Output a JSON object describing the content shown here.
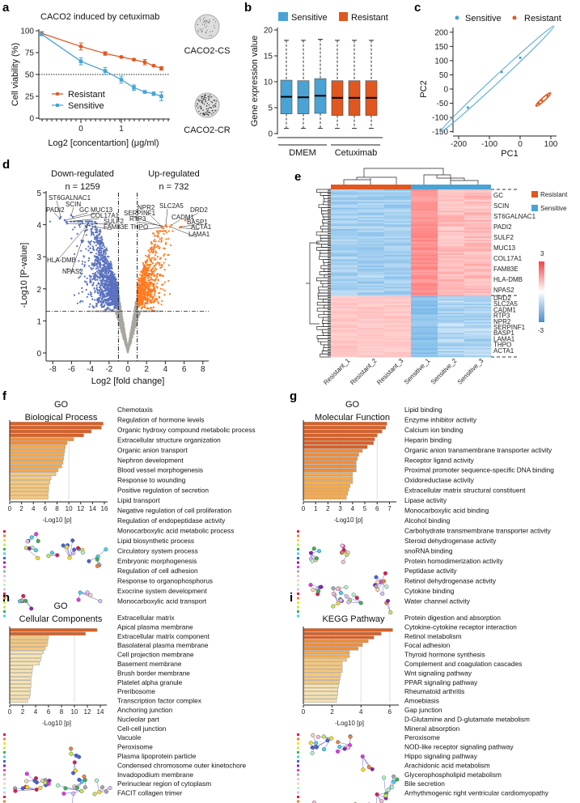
{
  "panels": {
    "a": "a",
    "b": "b",
    "c": "c",
    "d": "d",
    "e": "e",
    "f": "f",
    "g": "g",
    "h": "h",
    "i": "i"
  },
  "colors": {
    "resistant": "#e0571f",
    "sensitive": "#4aa3d4",
    "down": "#5b72c0",
    "up": "#ff7a1f",
    "gray": "#a9a6a0"
  },
  "chart_data": [
    {
      "id": "a",
      "type": "line",
      "title": "CACO2 induced by cetuximab",
      "xlabel": "Log2 [concentartion] (μg/ml)",
      "ylabel": "Cell viability (%)",
      "ylim": [
        0,
        100
      ],
      "yticks": [
        "0",
        "25",
        "50",
        "75",
        "100"
      ],
      "xticks": [
        "0",
        "1"
      ],
      "reference_line": 50,
      "x": [
        -0.97,
        0,
        0.6,
        1,
        1.31,
        1.58,
        1.8,
        1.99
      ],
      "series": [
        {
          "name": "Resistant",
          "values": [
            97,
            82,
            74,
            70,
            67,
            64,
            60,
            57
          ],
          "err": [
            2,
            4,
            2,
            1,
            1,
            3,
            1,
            2
          ]
        },
        {
          "name": "Sensitive",
          "values": [
            96,
            65,
            54,
            44,
            35,
            30,
            28,
            25
          ],
          "err": [
            1,
            4,
            4,
            4,
            3,
            1,
            2,
            5
          ]
        }
      ],
      "images": [
        "CACO2-CS",
        "CACO2-CR"
      ]
    },
    {
      "id": "b",
      "type": "box",
      "ylabel": "Gene expression value",
      "ylim": [
        0,
        20
      ],
      "yticks": [
        "0",
        "5",
        "10",
        "15",
        "20"
      ],
      "legend": [
        "Sensitive",
        "Resistant"
      ],
      "groups": [
        "DMEM",
        "Cetuximab"
      ],
      "boxes": [
        {
          "series": "Sensitive",
          "min": 1,
          "q1": 3.8,
          "median": 7.1,
          "q3": 10.3,
          "max": 18
        },
        {
          "series": "Sensitive",
          "min": 1,
          "q1": 3.8,
          "median": 7.0,
          "q3": 10.2,
          "max": 18
        },
        {
          "series": "Sensitive",
          "min": 1,
          "q1": 3.9,
          "median": 7.3,
          "q3": 10.6,
          "max": 18.2
        },
        {
          "series": "Resistant",
          "min": 1,
          "q1": 3.5,
          "median": 6.9,
          "q3": 10.2,
          "max": 18
        },
        {
          "series": "Resistant",
          "min": 1,
          "q1": 3.5,
          "median": 6.9,
          "q3": 10.2,
          "max": 18
        },
        {
          "series": "Resistant",
          "min": 1,
          "q1": 3.5,
          "median": 6.9,
          "q3": 10.2,
          "max": 18
        }
      ]
    },
    {
      "id": "c",
      "type": "scatter",
      "xlabel": "PC1",
      "ylabel": "PC2",
      "xticks": [
        "-200",
        "-100",
        "0",
        "100"
      ],
      "yticks": [
        "-150",
        "-100",
        "-50",
        "0",
        "50",
        "100",
        "150",
        "200"
      ],
      "legend": [
        "Sensitive",
        "Resistant"
      ],
      "series": [
        {
          "name": "Sensitive",
          "points": [
            [
              -170,
              -65
            ],
            [
              -60,
              60
            ],
            [
              0,
              110
            ]
          ]
        },
        {
          "name": "Resistant",
          "points": [
            [
              60,
              -50
            ],
            [
              70,
              -40
            ],
            [
              90,
              -25
            ]
          ]
        }
      ]
    },
    {
      "id": "d",
      "type": "scatter",
      "title_left": "Down-regulated",
      "title_right": "Up-regulated",
      "n_down": "n = 1259",
      "n_up": "n = 732",
      "xlabel": "Log2 [fold change]",
      "ylabel": "-Log10 [P-value]",
      "xticks": [
        "-8",
        "-6",
        "-4",
        "-2",
        "0",
        "2",
        "4",
        "6",
        "8"
      ],
      "yticks": [
        "0",
        "1",
        "2",
        "3",
        "4",
        "5"
      ],
      "thresholds": {
        "fc": 1,
        "p": 1.3
      },
      "labeled_genes": [
        "ST6GALNAC1",
        "SCIN",
        "PADI2",
        "GC",
        "MUC13",
        "COL17A1",
        "SULF2",
        "FAM83E",
        "HLA-DMB",
        "NPAS2",
        "NPR2",
        "SERPINF1",
        "RTP3",
        "THPO",
        "SLC2A5",
        "DRD2",
        "CADM1",
        "BASP1",
        "ACTA1",
        "LAMA1"
      ]
    },
    {
      "id": "e",
      "type": "heatmap",
      "columns": [
        "Resistant_1",
        "Resistant_2",
        "Resistant_3",
        "Sensitive_1",
        "Sensitive_2",
        "Sensitive_3"
      ],
      "legend": [
        "Resistant",
        "Sensitive"
      ],
      "scale": [
        "3",
        "-3"
      ],
      "genes_top": [
        "GC",
        "SCIN",
        "ST6GALNAC1",
        "PADI2",
        "SULF2",
        "MUC13",
        "COL17A1",
        "FAM83E",
        "HLA-DMB",
        "NPAS2"
      ],
      "genes_bottom": [
        "DRD2",
        "SLC2A5",
        "CADM1",
        "RTP3",
        "NPR2",
        "SERPINF1",
        "BASP1",
        "LAMA1",
        "THPO",
        "ACTA1"
      ]
    },
    {
      "id": "f",
      "type": "bar",
      "title1": "GO",
      "title2": "Biological Process",
      "xlabel": "-Log10 [p]",
      "xticks": [
        "0",
        "2",
        "4",
        "6",
        "8",
        "10",
        "12",
        "14",
        "16"
      ],
      "xmax": 16,
      "categories": [
        "Chemotaxis",
        "Regulation of hormone levels",
        "Organic hydroxy compound metabolic process",
        "Extracellular structure organization",
        "Organic anion transport",
        "Nephron development",
        "Blood vessel morphogenesis",
        "Response to wounding",
        "Positive regulation of secretion",
        "Lipid transport",
        "Negative regulation of cell proliferation",
        "Regulation of endopeptidase activity",
        "Monocarboxylic acid metabolic process",
        "Lipid biosynthetic process",
        "Circulatory system process",
        "Embryonic morphogenesis",
        "Regulation of cell adhesion",
        "Response to organophosphorus",
        "Exocrine system development",
        "Monocarboxylic acid transport"
      ],
      "values": [
        15.8,
        15.5,
        13.8,
        12.5,
        10.8,
        9.7,
        9.4,
        9.3,
        9.2,
        9.1,
        9.0,
        8.8,
        8.2,
        7.8,
        7.0,
        6.8,
        6.6,
        6.6,
        6.5,
        6.5
      ]
    },
    {
      "id": "g",
      "type": "bar",
      "title1": "GO",
      "title2": "Molecular Function",
      "xlabel": "-Log10 [p]",
      "xticks": [
        "0",
        "1",
        "2",
        "3",
        "4",
        "5",
        "6",
        "7"
      ],
      "xmax": 7.3,
      "categories": [
        "Lipid binding",
        "Enzyme inhibitor activity",
        "Calcium ion binding",
        "Heparin binding",
        "Organic anion transmembrane transporter activity",
        "Receptor ligand activity",
        "Proximal promoter sequence-specific DNA binding",
        "Oxidoreductase activity",
        "Extracellular matrix structural constituent",
        "Lipase activity",
        "Monocarboxylic acid binding",
        "Alcohol binding",
        "Carbohydrate transmembrane transporter activity",
        "Steroid dehydrogenase activity",
        "snoRNA binding",
        "Protein homodimerization activity",
        "Peptidase activity",
        "Retinol dehydrogenase activity",
        "Cytokine binding",
        "Water channel activity"
      ],
      "values": [
        6.8,
        6.7,
        6.4,
        6.0,
        5.8,
        5.7,
        5.2,
        4.8,
        4.5,
        4.4,
        4.3,
        4.3,
        4.3,
        4.0,
        4.0,
        4.0,
        3.8,
        3.7,
        3.6,
        3.5
      ]
    },
    {
      "id": "h",
      "type": "bar",
      "title1": "GO",
      "title2": "Cellular Components",
      "xlabel": "-Log10 [p]",
      "xticks": [
        "0",
        "2",
        "4",
        "6",
        "8",
        "10",
        "12",
        "14"
      ],
      "xmax": 14.5,
      "categories": [
        "Extracellular matrix",
        "Apical plasma membrane",
        "Extracellular matrix component",
        "Basolateral plasma membrane",
        "Cell projection membrane",
        "Basement membrane",
        "Brush border membrane",
        "Platelet alpha granule",
        "Preribosome",
        "Transcription factor complex",
        "Anchoring junction",
        "Nucleolar part",
        "Cell-cell junction",
        "Vacuole",
        "Peroxisome",
        "Plasma lipoprotein particle",
        "Condensed chromosome outer kinetochore",
        "Invadopodium membrane",
        "Perinuclear region of cytoplasm",
        "FACIT collagen trimer"
      ],
      "values": [
        13.5,
        11.7,
        6.0,
        5.9,
        5.8,
        5.5,
        5.2,
        4.9,
        4.8,
        4.6,
        3.6,
        3.5,
        3.4,
        3.3,
        3.3,
        3.3,
        3.2,
        3.2,
        3.1,
        2.8
      ]
    },
    {
      "id": "i",
      "type": "bar",
      "title1": "",
      "title2": "KEGG Pathway",
      "xlabel": "-Log10 [p]",
      "xticks": [
        "0",
        "2",
        "4",
        "6"
      ],
      "xmax": 6.4,
      "categories": [
        "Protein digestion and absorption",
        "Cytokine-cytokine receptor interaction",
        "Retinol metabolism",
        "Focal adhesion",
        "Thyroid hormone synthesis",
        "Complement and coagulation cascades",
        "Wnt signaling pathway",
        "PPAR signaling pathway",
        "Rheumatoid arthritis",
        "Amoebiasis",
        "Gap junction",
        "D-Glutamine and D-glutamate metabolism",
        "Mineral absorption",
        "Peroxisome",
        "NOD-like receptor signaling pathway",
        "Hippo signaling pathway",
        "Arachidonic acid metabolism",
        "Glycerophospholipid metabolism",
        "Bile secretion",
        "Arrhythmogenic right ventricular cardiomyopathy"
      ],
      "values": [
        6.2,
        5.4,
        4.9,
        4.5,
        4.1,
        3.8,
        3.2,
        3.2,
        3.0,
        2.7,
        2.7,
        2.7,
        2.6,
        2.55,
        2.5,
        2.45,
        2.4,
        2.4,
        2.35,
        2.3
      ]
    }
  ]
}
